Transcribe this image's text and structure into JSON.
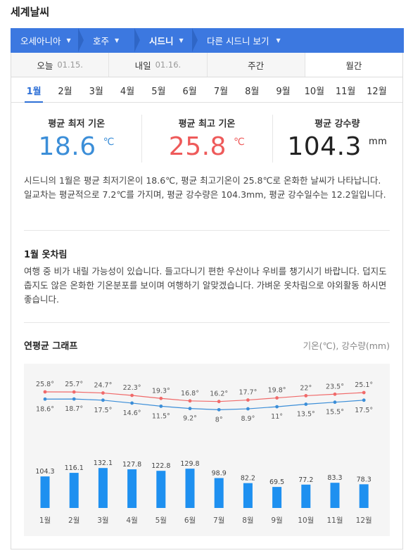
{
  "page_title": "세계날씨",
  "breadcrumb": [
    {
      "label": "오세아니아"
    },
    {
      "label": "호주"
    },
    {
      "label": "시드니"
    },
    {
      "label": "다른 시드니 보기"
    }
  ],
  "day_tabs": [
    {
      "label": "오늘",
      "date": "01.15."
    },
    {
      "label": "내일",
      "date": "01.16."
    },
    {
      "label": "주간",
      "date": ""
    },
    {
      "label": "월간",
      "date": ""
    }
  ],
  "months": [
    "1월",
    "2월",
    "3월",
    "4월",
    "5월",
    "6월",
    "7월",
    "8월",
    "9월",
    "10월",
    "11월",
    "12월"
  ],
  "stats": {
    "min": {
      "label": "평균 최저 기온",
      "value": "18.6",
      "unit": "℃"
    },
    "max": {
      "label": "평균 최고 기온",
      "value": "25.8",
      "unit": "℃"
    },
    "rain": {
      "label": "평균 강수량",
      "value": "104.3",
      "unit": "mm"
    }
  },
  "description": "시드니의 1월은 평균 최저기온이 18.6℃, 평균 최고기온이 25.8℃로 온화한 날씨가 나타납니다. 일교차는 평균적으로 7.2℃를 가지며, 평균 강수량은 104.3mm, 평균 강수일수는 12.2일입니다.",
  "clothing": {
    "title": "1월 옷차림",
    "text": "여행 중 비가 내릴 가능성이 있습니다. 들고다니기 편한 우산이나 우비를 챙기시기 바랍니다. 덥지도 춥지도 않은 온화한 기온분포를 보이며 여행하기 알맞겠습니다. 가벼운 옷차림으로 야외활동 하시면 좋습니다."
  },
  "graph": {
    "title": "연평균 그래프",
    "units": "기온(℃), 강수량(mm)"
  },
  "chart_data": {
    "type": "line",
    "categories": [
      "1월",
      "2월",
      "3월",
      "4월",
      "5월",
      "6월",
      "7월",
      "8월",
      "9월",
      "10월",
      "11월",
      "12월"
    ],
    "series": [
      {
        "values": [
          25.8,
          25.7,
          24.7,
          22.3,
          19.3,
          16.8,
          16.2,
          17.7,
          19.8,
          22,
          23.5,
          25.1
        ],
        "color": "#f06a6a"
      },
      {
        "values": [
          18.6,
          18.7,
          17.5,
          14.6,
          11.5,
          9.2,
          8,
          8.9,
          11,
          13.5,
          15.5,
          17.5
        ],
        "color": "#3b8ed8"
      }
    ],
    "bars": {
      "type": "bar",
      "values": [
        104.3,
        116.1,
        132.1,
        127.8,
        122.8,
        129.8,
        98.9,
        82.2,
        69.5,
        77.2,
        83.3,
        78.3
      ],
      "color": "#1e90f0"
    },
    "temp_label_suffix": "°"
  },
  "colors": {
    "accent": "#3c78e0",
    "max_temp": "#ee5a5a",
    "min_temp": "#3b8ed8"
  }
}
